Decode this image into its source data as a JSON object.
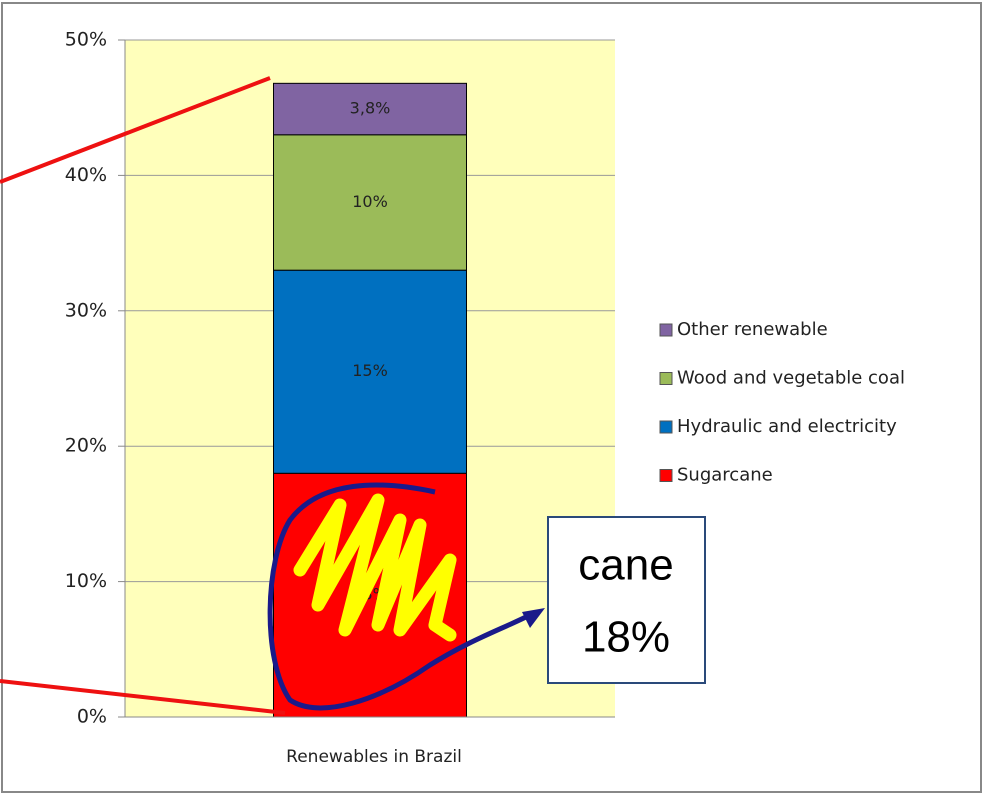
{
  "chart_data": {
    "type": "stacked_bar",
    "categories": [
      "Renewables in Brazil"
    ],
    "series": [
      {
        "name": "Sugarcane",
        "color": "#ff0000",
        "values": [
          18
        ],
        "value_labels": [
          "18%"
        ]
      },
      {
        "name": "Hydraulic and electricity",
        "color": "#0070c0",
        "values": [
          15
        ],
        "value_labels": [
          "15%"
        ]
      },
      {
        "name": "Wood and vegetable coal",
        "color": "#9bbb59",
        "values": [
          10
        ],
        "value_labels": [
          "10%"
        ]
      },
      {
        "name": "Other renewable",
        "color": "#8064a2",
        "values": [
          3.8
        ],
        "value_labels": [
          "3,8%"
        ]
      }
    ],
    "ylim": [
      0,
      50
    ],
    "yticks": [
      {
        "value": 0,
        "label": "0%"
      },
      {
        "value": 10,
        "label": "10%"
      },
      {
        "value": 20,
        "label": "20%"
      },
      {
        "value": 30,
        "label": "30%"
      },
      {
        "value": 40,
        "label": "40%"
      },
      {
        "value": 50,
        "label": "50%"
      }
    ],
    "grid": true,
    "legend": "right",
    "plot_background": "#ffffbb",
    "annotation": [
      "cane",
      "18%"
    ]
  }
}
